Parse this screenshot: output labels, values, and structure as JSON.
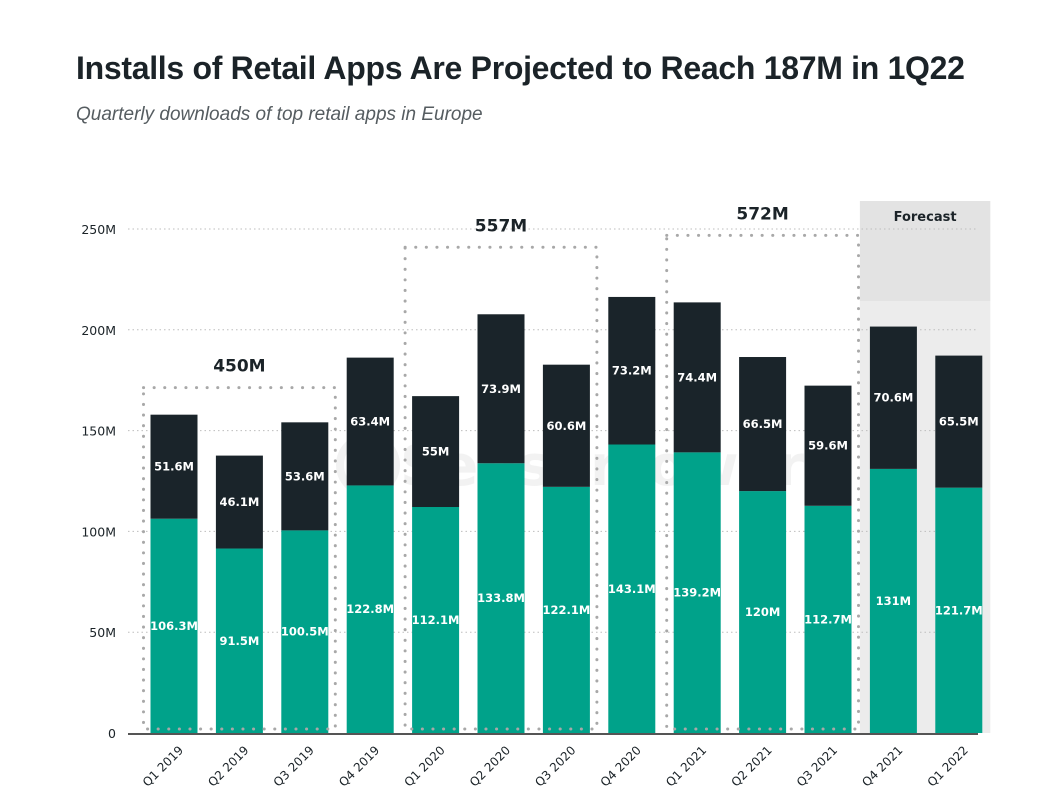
{
  "chart_data": {
    "type": "bar",
    "stacked": true,
    "title": "Installs of Retail Apps Are Projected to Reach 187M in 1Q22",
    "subtitle": "Quarterly downloads of top retail apps in Europe",
    "xlabel": "",
    "ylabel": "",
    "ylim": [
      0,
      250
    ],
    "yticks": [
      0,
      50,
      100,
      150,
      200,
      250
    ],
    "ytick_labels": [
      "0",
      "50M",
      "100M",
      "150M",
      "200M",
      "250M"
    ],
    "grid": true,
    "categories": [
      "Q1 2019",
      "Q2 2019",
      "Q3 2019",
      "Q4 2019",
      "Q1 2020",
      "Q2 2020",
      "Q3 2020",
      "Q4 2020",
      "Q1 2021",
      "Q2 2021",
      "Q3 2021",
      "Q4 2021",
      "Q1 2022"
    ],
    "series": [
      {
        "name": "bottom",
        "color": "#00a28a",
        "values": [
          106.3,
          91.5,
          100.5,
          122.8,
          112.1,
          133.8,
          122.1,
          143.1,
          139.2,
          120,
          112.7,
          131,
          121.7
        ],
        "labels": [
          "106.3M",
          "91.5M",
          "100.5M",
          "122.8M",
          "112.1M",
          "133.8M",
          "122.1M",
          "143.1M",
          "139.2M",
          "120M",
          "112.7M",
          "131M",
          "121.7M"
        ]
      },
      {
        "name": "top",
        "color": "#1a242a",
        "values": [
          51.6,
          46.1,
          53.6,
          63.4,
          55,
          73.9,
          60.6,
          73.2,
          74.4,
          66.5,
          59.6,
          70.6,
          65.5
        ],
        "labels": [
          "51.6M",
          "46.1M",
          "53.6M",
          "63.4M",
          "55M",
          "73.9M",
          "60.6M",
          "73.2M",
          "74.4M",
          "66.5M",
          "59.6M",
          "70.6M",
          "65.5M"
        ]
      }
    ],
    "annotations": [
      {
        "type": "group-box",
        "label": "450M",
        "from": 0,
        "to": 2
      },
      {
        "type": "group-box",
        "label": "557M",
        "from": 4,
        "to": 6
      },
      {
        "type": "group-box",
        "label": "572M",
        "from": 8,
        "to": 10
      },
      {
        "type": "shaded-region",
        "label": "Forecast",
        "from": 11,
        "to": 12
      }
    ],
    "watermark": "SensorTower"
  },
  "colors": {
    "bottom": "#00a28a",
    "top": "#1a242a",
    "forecast_bg": "#e6e6e6",
    "grid": "#bdbdbd",
    "text": "#1b2328"
  }
}
